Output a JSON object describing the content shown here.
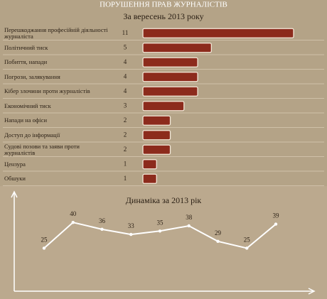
{
  "chart_data": [
    {
      "type": "barh",
      "title": "ПОРУШЕННЯ ПРАВ ЖУРНАЛІСТІВ",
      "subtitle": "За вересень 2013 року",
      "categories": [
        "Перешкоджання професійній діяльності журналіста",
        "Політичний тиск",
        "Побиття, напади",
        "Погрози, залякування",
        "Кібер злочини проти журналістів",
        "Економічний тиск",
        "Напади на офіси",
        "Доступ до інформації",
        "Судові позови та заяви проти журналістів",
        "Цензура",
        "Обшуки"
      ],
      "values": [
        11,
        5,
        4,
        4,
        4,
        3,
        2,
        2,
        2,
        1,
        1
      ],
      "color": "#8c2b1c",
      "xlim": [
        0,
        11
      ]
    },
    {
      "type": "line",
      "title": "Динаміка за 2013 рік",
      "categories": [
        null,
        null,
        null,
        null,
        null,
        null,
        null,
        null,
        null
      ],
      "values": [
        25,
        40,
        36,
        33,
        35,
        38,
        29,
        25,
        39
      ],
      "color": "#ffffff",
      "ylim": [
        0,
        57
      ]
    }
  ]
}
